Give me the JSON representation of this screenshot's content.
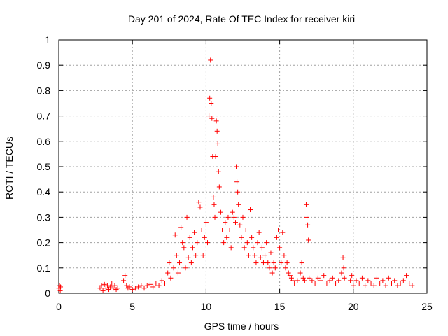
{
  "chart_data": {
    "type": "scatter",
    "title": "Day 201 of 2024, Rate Of TEC Index for receiver kiri",
    "xlabel": "GPS time / hours",
    "ylabel": "ROTI / TECUs",
    "xlim": [
      0,
      25
    ],
    "ylim": [
      0,
      1
    ],
    "xticks": [
      0,
      5,
      10,
      15,
      20,
      25
    ],
    "yticks": [
      0,
      0.1,
      0.2,
      0.3,
      0.4,
      0.5,
      0.6,
      0.7,
      0.8,
      0.9,
      1
    ],
    "xtick_labels": [
      "0",
      "5",
      "10",
      "15",
      "20",
      "25"
    ],
    "ytick_labels": [
      "0",
      "0.1",
      "0.2",
      "0.3",
      "0.4",
      "0.5",
      "0.6",
      "0.7",
      "0.8",
      "0.9",
      "1"
    ],
    "grid": true,
    "marker": "+",
    "series_color": "#ff0000",
    "series": [
      {
        "name": "ROTI",
        "points": [
          [
            0.0,
            0.02
          ],
          [
            0.05,
            0.03
          ],
          [
            0.1,
            0.01
          ],
          [
            0.12,
            0.025
          ],
          [
            2.8,
            0.02
          ],
          [
            2.9,
            0.03
          ],
          [
            3.0,
            0.01
          ],
          [
            3.1,
            0.035
          ],
          [
            3.2,
            0.02
          ],
          [
            3.3,
            0.03
          ],
          [
            3.4,
            0.015
          ],
          [
            3.5,
            0.025
          ],
          [
            3.6,
            0.04
          ],
          [
            3.7,
            0.02
          ],
          [
            3.8,
            0.03
          ],
          [
            3.9,
            0.015
          ],
          [
            4.0,
            0.02
          ],
          [
            4.4,
            0.05
          ],
          [
            4.5,
            0.07
          ],
          [
            4.6,
            0.03
          ],
          [
            4.7,
            0.02
          ],
          [
            4.8,
            0.025
          ],
          [
            5.0,
            0.015
          ],
          [
            5.2,
            0.02
          ],
          [
            5.4,
            0.025
          ],
          [
            5.6,
            0.03
          ],
          [
            5.8,
            0.02
          ],
          [
            6.0,
            0.03
          ],
          [
            6.2,
            0.035
          ],
          [
            6.4,
            0.025
          ],
          [
            6.6,
            0.04
          ],
          [
            6.8,
            0.03
          ],
          [
            7.0,
            0.05
          ],
          [
            7.2,
            0.04
          ],
          [
            7.4,
            0.08
          ],
          [
            7.5,
            0.12
          ],
          [
            7.6,
            0.06
          ],
          [
            7.8,
            0.1
          ],
          [
            7.9,
            0.23
          ],
          [
            8.0,
            0.15
          ],
          [
            8.1,
            0.08
          ],
          [
            8.2,
            0.12
          ],
          [
            8.3,
            0.26
          ],
          [
            8.4,
            0.2
          ],
          [
            8.5,
            0.18
          ],
          [
            8.6,
            0.1
          ],
          [
            8.7,
            0.3
          ],
          [
            8.8,
            0.14
          ],
          [
            8.9,
            0.22
          ],
          [
            9.0,
            0.12
          ],
          [
            9.1,
            0.18
          ],
          [
            9.2,
            0.24
          ],
          [
            9.3,
            0.15
          ],
          [
            9.4,
            0.2
          ],
          [
            9.5,
            0.36
          ],
          [
            9.6,
            0.34
          ],
          [
            9.7,
            0.25
          ],
          [
            9.8,
            0.15
          ],
          [
            9.9,
            0.22
          ],
          [
            10.0,
            0.28
          ],
          [
            10.1,
            0.2
          ],
          [
            10.2,
            0.7
          ],
          [
            10.25,
            0.77
          ],
          [
            10.3,
            0.92
          ],
          [
            10.35,
            0.75
          ],
          [
            10.4,
            0.69
          ],
          [
            10.45,
            0.54
          ],
          [
            10.5,
            0.38
          ],
          [
            10.55,
            0.35
          ],
          [
            10.6,
            0.3
          ],
          [
            10.65,
            0.54
          ],
          [
            10.7,
            0.68
          ],
          [
            10.75,
            0.64
          ],
          [
            10.8,
            0.59
          ],
          [
            10.85,
            0.48
          ],
          [
            10.9,
            0.42
          ],
          [
            11.0,
            0.32
          ],
          [
            11.1,
            0.25
          ],
          [
            11.2,
            0.2
          ],
          [
            11.3,
            0.28
          ],
          [
            11.4,
            0.22
          ],
          [
            11.5,
            0.3
          ],
          [
            11.6,
            0.25
          ],
          [
            11.7,
            0.18
          ],
          [
            11.8,
            0.32
          ],
          [
            11.9,
            0.3
          ],
          [
            12.0,
            0.28
          ],
          [
            12.05,
            0.5
          ],
          [
            12.1,
            0.44
          ],
          [
            12.15,
            0.4
          ],
          [
            12.2,
            0.35
          ],
          [
            12.3,
            0.27
          ],
          [
            12.4,
            0.22
          ],
          [
            12.5,
            0.3
          ],
          [
            12.6,
            0.18
          ],
          [
            12.7,
            0.25
          ],
          [
            12.8,
            0.2
          ],
          [
            12.9,
            0.15
          ],
          [
            13.0,
            0.33
          ],
          [
            13.1,
            0.22
          ],
          [
            13.2,
            0.18
          ],
          [
            13.3,
            0.15
          ],
          [
            13.4,
            0.12
          ],
          [
            13.5,
            0.2
          ],
          [
            13.6,
            0.24
          ],
          [
            13.7,
            0.14
          ],
          [
            13.8,
            0.18
          ],
          [
            13.9,
            0.12
          ],
          [
            14.0,
            0.15
          ],
          [
            14.1,
            0.2
          ],
          [
            14.2,
            0.12
          ],
          [
            14.3,
            0.1
          ],
          [
            14.4,
            0.16
          ],
          [
            14.5,
            0.08
          ],
          [
            14.6,
            0.12
          ],
          [
            14.7,
            0.1
          ],
          [
            14.8,
            0.22
          ],
          [
            14.9,
            0.25
          ],
          [
            15.0,
            0.18
          ],
          [
            15.1,
            0.12
          ],
          [
            15.2,
            0.24
          ],
          [
            15.3,
            0.15
          ],
          [
            15.4,
            0.1
          ],
          [
            15.5,
            0.12
          ],
          [
            15.6,
            0.08
          ],
          [
            15.7,
            0.07
          ],
          [
            15.8,
            0.06
          ],
          [
            15.9,
            0.05
          ],
          [
            16.0,
            0.04
          ],
          [
            16.2,
            0.05
          ],
          [
            16.4,
            0.08
          ],
          [
            16.5,
            0.12
          ],
          [
            16.6,
            0.06
          ],
          [
            16.7,
            0.05
          ],
          [
            16.8,
            0.35
          ],
          [
            16.85,
            0.3
          ],
          [
            16.9,
            0.27
          ],
          [
            16.95,
            0.21
          ],
          [
            17.0,
            0.06
          ],
          [
            17.2,
            0.05
          ],
          [
            17.4,
            0.04
          ],
          [
            17.6,
            0.06
          ],
          [
            17.8,
            0.05
          ],
          [
            18.0,
            0.07
          ],
          [
            18.2,
            0.04
          ],
          [
            18.4,
            0.05
          ],
          [
            18.6,
            0.06
          ],
          [
            18.8,
            0.04
          ],
          [
            19.0,
            0.05
          ],
          [
            19.2,
            0.08
          ],
          [
            19.3,
            0.14
          ],
          [
            19.35,
            0.1
          ],
          [
            19.4,
            0.06
          ],
          [
            19.8,
            0.05
          ],
          [
            19.9,
            0.07
          ],
          [
            20.0,
            0.03
          ],
          [
            20.2,
            0.05
          ],
          [
            20.4,
            0.04
          ],
          [
            20.6,
            0.06
          ],
          [
            20.8,
            0.03
          ],
          [
            21.0,
            0.05
          ],
          [
            21.2,
            0.04
          ],
          [
            21.4,
            0.03
          ],
          [
            21.6,
            0.06
          ],
          [
            21.8,
            0.04
          ],
          [
            22.0,
            0.05
          ],
          [
            22.2,
            0.03
          ],
          [
            22.4,
            0.06
          ],
          [
            22.6,
            0.04
          ],
          [
            22.8,
            0.05
          ],
          [
            23.0,
            0.03
          ],
          [
            23.2,
            0.04
          ],
          [
            23.4,
            0.05
          ],
          [
            23.6,
            0.07
          ],
          [
            23.8,
            0.04
          ],
          [
            24.0,
            0.03
          ]
        ]
      }
    ]
  }
}
